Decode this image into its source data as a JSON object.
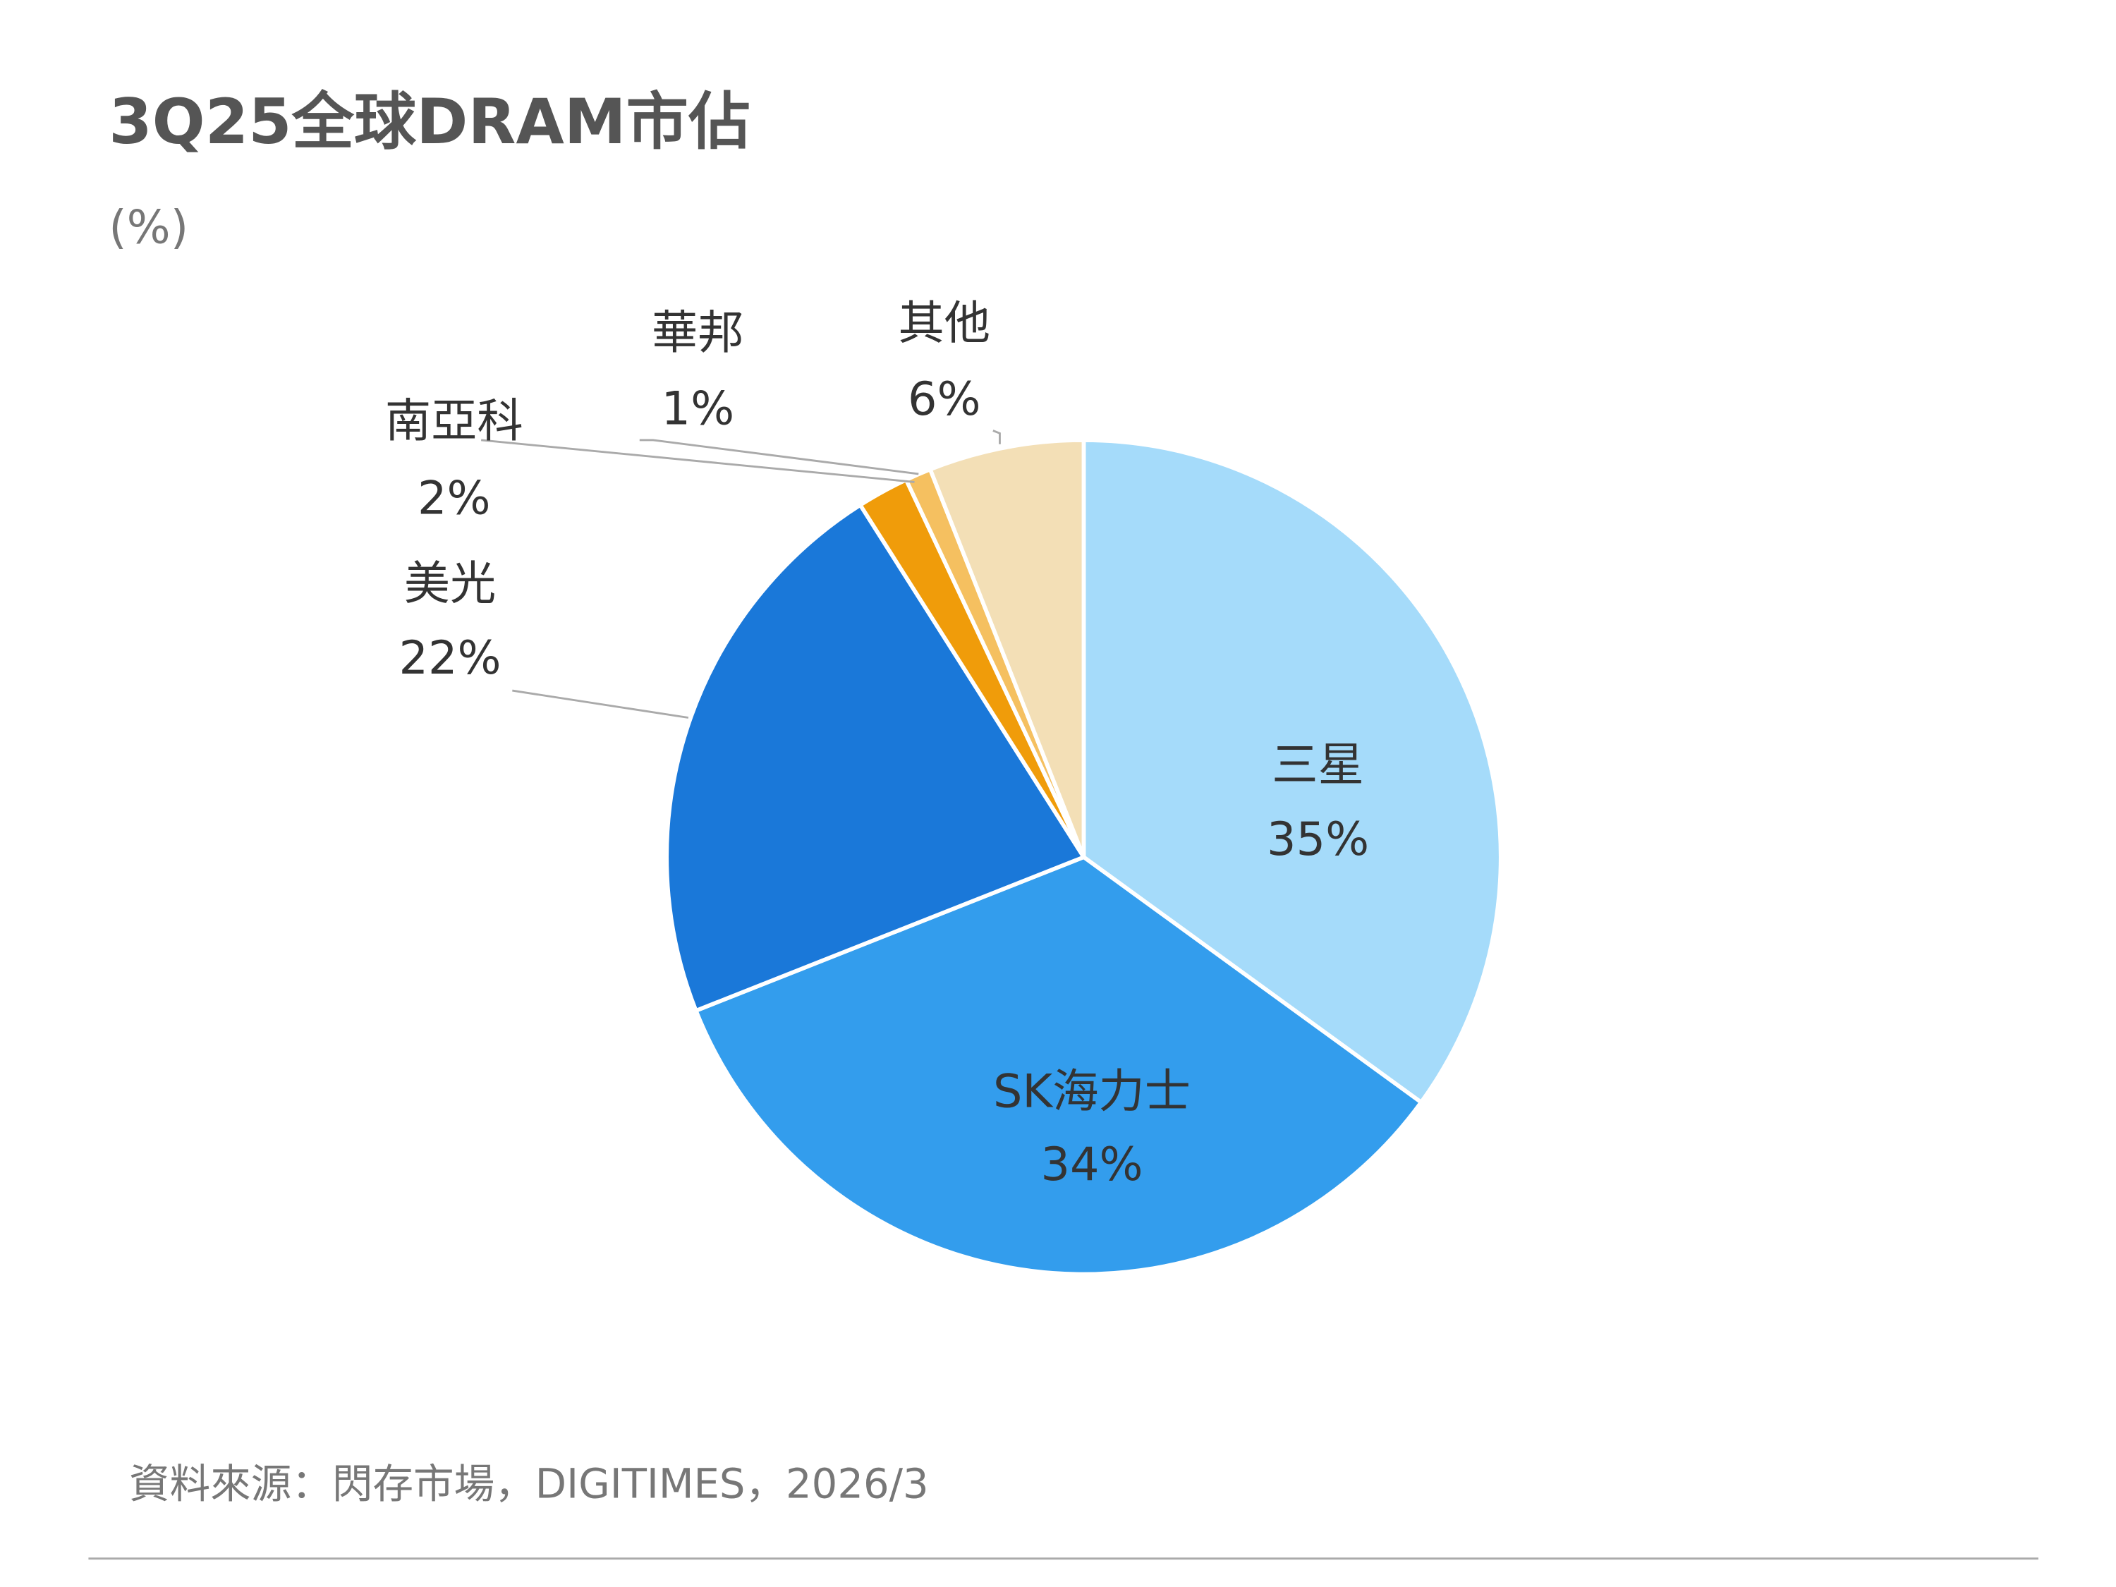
{
  "chart_data": {
    "type": "pie",
    "title": "3Q25全球DRAM市佔",
    "subtitle": "(%)",
    "categories": [
      "三星",
      "SK海力士",
      "美光",
      "南亞科",
      "華邦",
      "其他"
    ],
    "values": [
      35,
      34,
      22,
      2,
      1,
      6
    ],
    "value_labels": [
      "35%",
      "34%",
      "22%",
      "2%",
      "1%",
      "6%"
    ],
    "colors": [
      "#a5dbfa",
      "#339ded",
      "#1a78d9",
      "#f09c0a",
      "#f5c060",
      "#f3dfb6"
    ],
    "source": "資料來源：閃存市場，DIGITIMES，2026/3"
  }
}
